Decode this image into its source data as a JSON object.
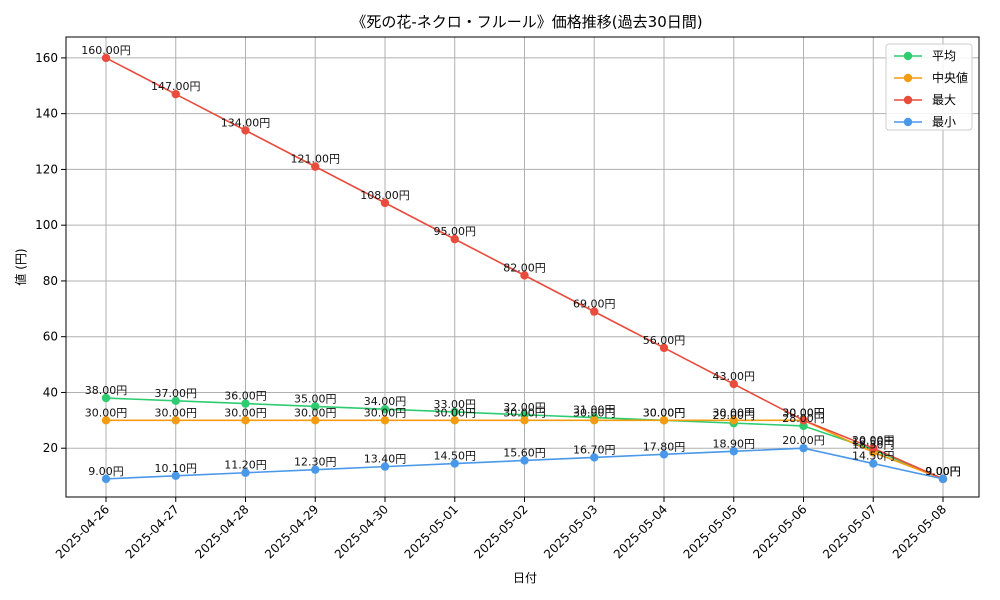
{
  "chart_data": {
    "type": "line",
    "title": "《死の花-ネクロ・フルール》価格推移(過去30日間)",
    "xlabel": "日付",
    "ylabel": "値 (円)",
    "categories": [
      "2025-04-26",
      "2025-04-27",
      "2025-04-28",
      "2025-04-29",
      "2025-04-30",
      "2025-05-01",
      "2025-05-02",
      "2025-05-03",
      "2025-05-04",
      "2025-05-05",
      "2025-05-06",
      "2025-05-07",
      "2025-05-08"
    ],
    "ylim": [
      2.5,
      167.5
    ],
    "yticks": [
      20,
      40,
      60,
      80,
      100,
      120,
      140,
      160
    ],
    "grid": true,
    "legend_position": "top-right",
    "label_suffix": "円",
    "series": [
      {
        "name": "平均",
        "color": "#2ecc71",
        "values": [
          38,
          37,
          36,
          35,
          34,
          33,
          32,
          31,
          30,
          29,
          28,
          19.5,
          9
        ]
      },
      {
        "name": "中央値",
        "color": "#f39c12",
        "values": [
          30,
          30,
          30,
          30,
          30,
          30,
          30,
          30,
          30,
          30,
          30,
          18.5,
          9
        ]
      },
      {
        "name": "最大",
        "color": "#e74c3c",
        "values": [
          160,
          147,
          134,
          121,
          108,
          95,
          82,
          69,
          56,
          43,
          30,
          20,
          9
        ]
      },
      {
        "name": "最小",
        "color": "#4a98ea",
        "values": [
          9,
          10.1,
          11.2,
          12.3,
          13.4,
          14.5,
          15.6,
          16.7,
          17.8,
          18.9,
          20,
          14.5,
          9
        ]
      }
    ]
  }
}
